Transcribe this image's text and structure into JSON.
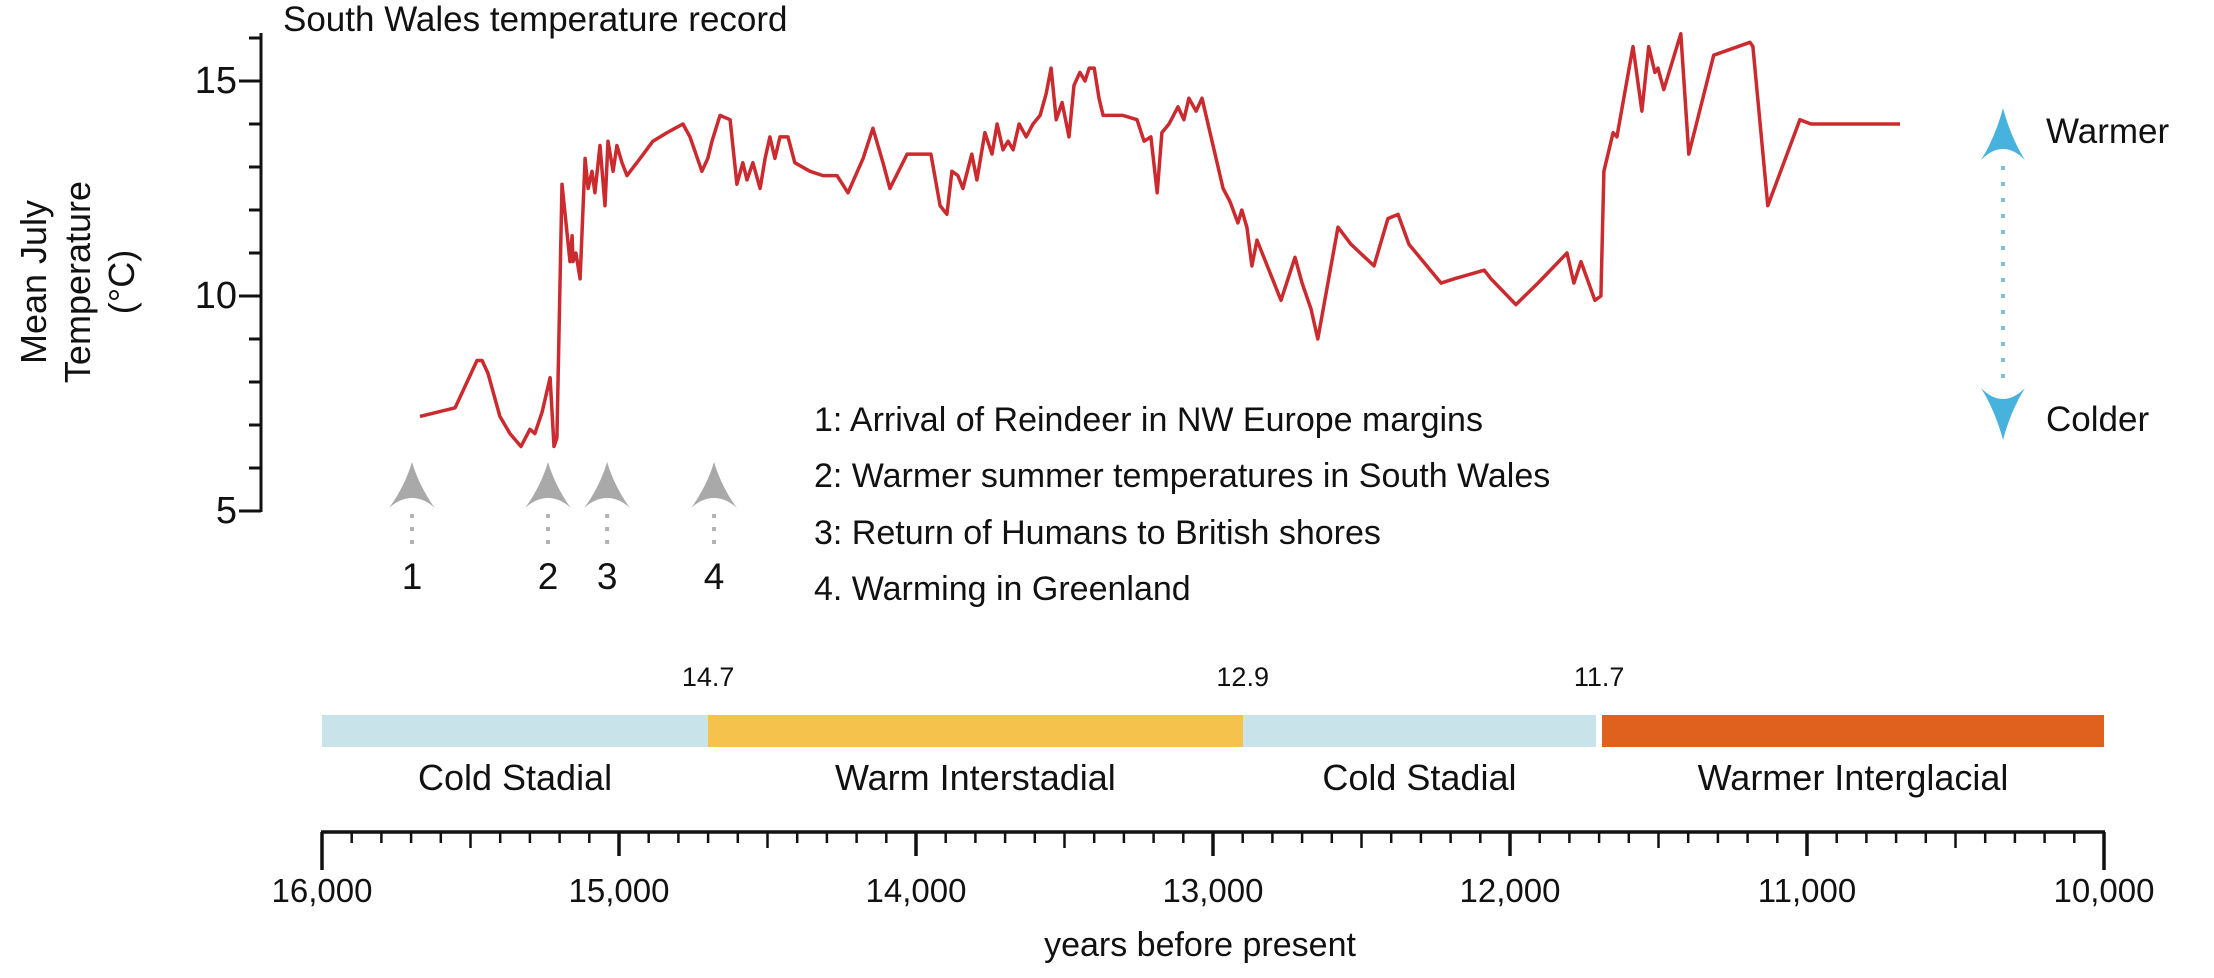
{
  "title": "South Wales temperature record",
  "y_axis": {
    "label_lines": [
      "Mean July",
      "Temperature",
      "(°C)"
    ],
    "major_ticks": [
      {
        "label": "15",
        "value": 15
      },
      {
        "label": "10",
        "value": 10
      },
      {
        "label": "5",
        "value": 5
      }
    ],
    "minor_tick_values": [
      16,
      14,
      13,
      12,
      11,
      9,
      8,
      7,
      6
    ]
  },
  "x_axis": {
    "label": "years before present",
    "major_ticks": [
      {
        "label": "16,000",
        "value": 16000
      },
      {
        "label": "15,000",
        "value": 15000
      },
      {
        "label": "14,000",
        "value": 14000
      },
      {
        "label": "13,000",
        "value": 13000
      },
      {
        "label": "12,000",
        "value": 12000
      },
      {
        "label": "11,000",
        "value": 11000
      },
      {
        "label": "10,000",
        "value": 10000
      }
    ],
    "minor_step": 100,
    "medium_step": 500
  },
  "indicator": {
    "warmer_label": "Warmer",
    "colder_label": "Colder",
    "arrow_color": "#47b2dd",
    "stem_color": "#7cc0d4"
  },
  "events": {
    "arrow_color": "#a9a9a9",
    "stem_color": "#b3b3b3",
    "markers": [
      {
        "num": "1",
        "year": 15697
      },
      {
        "num": "2",
        "year": 15239
      },
      {
        "num": "3",
        "year": 15040
      },
      {
        "num": "4",
        "year": 14680
      }
    ],
    "notes": [
      "1: Arrival of Reindeer in NW Europe margins",
      "2: Warmer summer temperatures in South Wales",
      "3: Return of Humans to British shores",
      "4. Warming in Greenland"
    ]
  },
  "timeline": {
    "segments": [
      {
        "label": "Cold Stadial",
        "from": 16000,
        "to": 14700,
        "color": "#c9e3ea"
      },
      {
        "label": "Warm Interstadial",
        "from": 14700,
        "to": 12900,
        "color": "#f5c34c"
      },
      {
        "label": "Cold Stadial",
        "from": 12900,
        "to": 11710,
        "color": "#c9e3ea"
      },
      {
        "label": "Warmer Interglacial",
        "from": 11690,
        "to": 10000,
        "color": "#e0611e"
      }
    ],
    "boundaries": [
      {
        "label": "14.7",
        "value": 14700
      },
      {
        "label": "12.9",
        "value": 12900
      },
      {
        "label": "11.7",
        "value": 11700
      }
    ]
  },
  "chart_data": {
    "type": "line",
    "title": "South Wales temperature record",
    "xlabel": "years before present",
    "ylabel": "Mean July Temperature (°C)",
    "xlim": [
      16000,
      10000
    ],
    "x_reversed": true,
    "ylim": [
      5,
      16.2
    ],
    "x_ticks": [
      16000,
      15000,
      14000,
      13000,
      12000,
      11000,
      10000
    ],
    "y_ticks": [
      5,
      10,
      15
    ],
    "grid": false,
    "line_color": "#cb2a2e",
    "zones": [
      {
        "label": "Cold Stadial",
        "from": 16000,
        "to": 14700
      },
      {
        "label": "Warm Interstadial",
        "from": 14700,
        "to": 12900
      },
      {
        "label": "Cold Stadial",
        "from": 12900,
        "to": 11700
      },
      {
        "label": "Warmer Interglacial",
        "from": 11700,
        "to": 10000
      }
    ],
    "events": [
      {
        "num": "1",
        "year": 15697,
        "label": "Arrival of Reindeer in NW Europe margins"
      },
      {
        "num": "2",
        "year": 15239,
        "label": "Warmer summer temperatures in South Wales"
      },
      {
        "num": "3",
        "year": 15040,
        "label": "Return of Humans to British shores"
      },
      {
        "num": "4",
        "year": 14680,
        "label": "Warming in Greenland"
      }
    ],
    "points": [
      [
        15670,
        7.2
      ],
      [
        15552,
        7.4
      ],
      [
        15478,
        8.5
      ],
      [
        15461,
        8.5
      ],
      [
        15441,
        8.2
      ],
      [
        15401,
        7.2
      ],
      [
        15367,
        6.8
      ],
      [
        15330,
        6.5
      ],
      [
        15300,
        6.9
      ],
      [
        15283,
        6.8
      ],
      [
        15259,
        7.3
      ],
      [
        15232,
        8.1
      ],
      [
        15219,
        6.5
      ],
      [
        15209,
        6.7
      ],
      [
        15192,
        12.6
      ],
      [
        15165,
        10.8
      ],
      [
        15158,
        11.4
      ],
      [
        15155,
        10.8
      ],
      [
        15145,
        11.0
      ],
      [
        15131,
        10.4
      ],
      [
        15114,
        13.2
      ],
      [
        15104,
        12.5
      ],
      [
        15091,
        12.9
      ],
      [
        15081,
        12.4
      ],
      [
        15064,
        13.5
      ],
      [
        15047,
        12.1
      ],
      [
        15037,
        13.6
      ],
      [
        15020,
        12.9
      ],
      [
        15007,
        13.5
      ],
      [
        14990,
        13.1
      ],
      [
        14973,
        12.8
      ],
      [
        14929,
        13.2
      ],
      [
        14886,
        13.6
      ],
      [
        14838,
        13.8
      ],
      [
        14785,
        14.0
      ],
      [
        14761,
        13.7
      ],
      [
        14721,
        12.9
      ],
      [
        14701,
        13.2
      ],
      [
        14687,
        13.6
      ],
      [
        14660,
        14.2
      ],
      [
        14626,
        14.1
      ],
      [
        14603,
        12.6
      ],
      [
        14583,
        13.1
      ],
      [
        14569,
        12.7
      ],
      [
        14549,
        13.1
      ],
      [
        14525,
        12.5
      ],
      [
        14508,
        13.2
      ],
      [
        14492,
        13.7
      ],
      [
        14475,
        13.2
      ],
      [
        14458,
        13.7
      ],
      [
        14431,
        13.7
      ],
      [
        14408,
        13.1
      ],
      [
        14357,
        12.9
      ],
      [
        14313,
        12.8
      ],
      [
        14266,
        12.8
      ],
      [
        14229,
        12.4
      ],
      [
        14178,
        13.2
      ],
      [
        14145,
        13.9
      ],
      [
        14111,
        13.1
      ],
      [
        14088,
        12.5
      ],
      [
        14030,
        13.3
      ],
      [
        14000,
        13.3
      ],
      [
        13950,
        13.3
      ],
      [
        13919,
        12.1
      ],
      [
        13896,
        11.9
      ],
      [
        13879,
        12.9
      ],
      [
        13859,
        12.8
      ],
      [
        13842,
        12.5
      ],
      [
        13812,
        13.3
      ],
      [
        13795,
        12.7
      ],
      [
        13768,
        13.8
      ],
      [
        13744,
        13.3
      ],
      [
        13727,
        14.0
      ],
      [
        13707,
        13.4
      ],
      [
        13690,
        13.6
      ],
      [
        13673,
        13.4
      ],
      [
        13653,
        14.0
      ],
      [
        13629,
        13.7
      ],
      [
        13606,
        14.0
      ],
      [
        13582,
        14.2
      ],
      [
        13562,
        14.7
      ],
      [
        13545,
        15.3
      ],
      [
        13528,
        14.1
      ],
      [
        13508,
        14.5
      ],
      [
        13485,
        13.7
      ],
      [
        13468,
        14.9
      ],
      [
        13448,
        15.2
      ],
      [
        13431,
        15.0
      ],
      [
        13417,
        15.3
      ],
      [
        13400,
        15.3
      ],
      [
        13384,
        14.6
      ],
      [
        13370,
        14.2
      ],
      [
        13340,
        14.2
      ],
      [
        13303,
        14.2
      ],
      [
        13256,
        14.1
      ],
      [
        13232,
        13.6
      ],
      [
        13209,
        13.7
      ],
      [
        13188,
        12.4
      ],
      [
        13172,
        13.8
      ],
      [
        13148,
        14.0
      ],
      [
        13118,
        14.4
      ],
      [
        13098,
        14.1
      ],
      [
        13081,
        14.6
      ],
      [
        13057,
        14.3
      ],
      [
        13037,
        14.6
      ],
      [
        12966,
        12.5
      ],
      [
        12943,
        12.2
      ],
      [
        12916,
        11.7
      ],
      [
        12903,
        12.0
      ],
      [
        12886,
        11.6
      ],
      [
        12869,
        10.7
      ],
      [
        12852,
        11.3
      ],
      [
        12771,
        9.9
      ],
      [
        12724,
        10.9
      ],
      [
        12700,
        10.3
      ],
      [
        12670,
        9.7
      ],
      [
        12647,
        9.0
      ],
      [
        12579,
        11.6
      ],
      [
        12535,
        11.2
      ],
      [
        12458,
        10.7
      ],
      [
        12411,
        11.8
      ],
      [
        12377,
        11.9
      ],
      [
        12340,
        11.2
      ],
      [
        12232,
        10.3
      ],
      [
        12188,
        10.4
      ],
      [
        12087,
        10.6
      ],
      [
        12064,
        10.4
      ],
      [
        11980,
        9.8
      ],
      [
        11906,
        10.3
      ],
      [
        11808,
        11.0
      ],
      [
        11785,
        10.3
      ],
      [
        11761,
        10.8
      ],
      [
        11714,
        9.9
      ],
      [
        11694,
        10.0
      ],
      [
        11684,
        12.9
      ],
      [
        11653,
        13.8
      ],
      [
        11640,
        13.7
      ],
      [
        11586,
        15.8
      ],
      [
        11556,
        14.3
      ],
      [
        11533,
        15.8
      ],
      [
        11512,
        15.2
      ],
      [
        11502,
        15.3
      ],
      [
        11482,
        14.8
      ],
      [
        11425,
        16.1
      ],
      [
        11398,
        13.3
      ],
      [
        11314,
        15.6
      ],
      [
        11192,
        15.9
      ],
      [
        11182,
        15.8
      ],
      [
        11132,
        12.1
      ],
      [
        11024,
        14.1
      ],
      [
        10987,
        14.0
      ],
      [
        10687,
        14.0
      ]
    ]
  }
}
